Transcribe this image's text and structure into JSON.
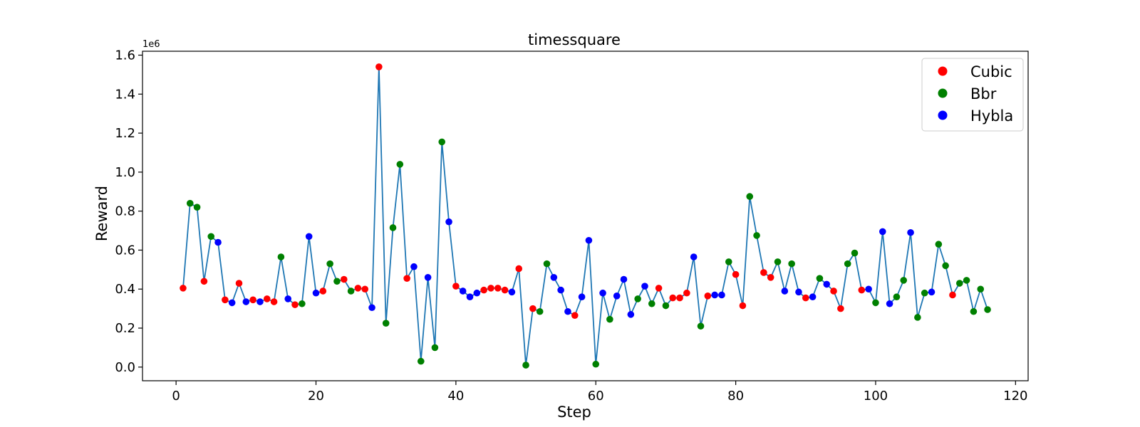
{
  "chart_data": {
    "type": "line",
    "title": "timessquare",
    "xlabel": "Step",
    "ylabel": "Reward",
    "y_offset_label": "1e6",
    "xlim": [
      -4.8,
      121.8
    ],
    "ylim": [
      -70000,
      1620000
    ],
    "x_ticks": [
      0,
      20,
      40,
      60,
      80,
      100,
      120
    ],
    "y_ticks": [
      0,
      200000,
      400000,
      600000,
      800000,
      1000000,
      1200000,
      1400000,
      1600000
    ],
    "y_tick_labels": [
      "0.0",
      "0.2",
      "0.4",
      "0.6",
      "0.8",
      "1.0",
      "1.2",
      "1.4",
      "1.6"
    ],
    "x_tick_labels": [
      "0",
      "20",
      "40",
      "60",
      "80",
      "100",
      "120"
    ],
    "line_color": "#1f77b4",
    "legend": {
      "position": "top-right",
      "entries": [
        {
          "label": "Cubic",
          "color": "#ff0000"
        },
        {
          "label": "Bbr",
          "color": "#008000"
        },
        {
          "label": "Hybla",
          "color": "#0000ff"
        }
      ]
    },
    "x": [
      1,
      2,
      3,
      4,
      5,
      6,
      7,
      8,
      9,
      10,
      11,
      12,
      13,
      14,
      15,
      16,
      17,
      18,
      19,
      20,
      21,
      22,
      23,
      24,
      25,
      26,
      27,
      28,
      29,
      30,
      31,
      32,
      33,
      34,
      35,
      36,
      37,
      38,
      39,
      40,
      41,
      42,
      43,
      44,
      45,
      46,
      47,
      48,
      49,
      50,
      51,
      52,
      53,
      54,
      55,
      56,
      57,
      58,
      59,
      60,
      61,
      62,
      63,
      64,
      65,
      66,
      67,
      68,
      69,
      70,
      71,
      72,
      73,
      74,
      75,
      76,
      77,
      78,
      79,
      80,
      81,
      82,
      83,
      84,
      85,
      86,
      87,
      88,
      89,
      90,
      91,
      92,
      93,
      94,
      95,
      96,
      97,
      98,
      99,
      100,
      101,
      102,
      103,
      104,
      105,
      106,
      107,
      108,
      109,
      110,
      111,
      112,
      113,
      114,
      115,
      116
    ],
    "y": [
      405000,
      840000,
      820000,
      440000,
      670000,
      640000,
      345000,
      330000,
      430000,
      335000,
      345000,
      335000,
      350000,
      335000,
      565000,
      350000,
      320000,
      325000,
      670000,
      380000,
      390000,
      530000,
      440000,
      450000,
      390000,
      405000,
      400000,
      305000,
      1540000,
      225000,
      715000,
      1040000,
      455000,
      515000,
      30000,
      460000,
      100000,
      1155000,
      745000,
      415000,
      390000,
      360000,
      380000,
      395000,
      405000,
      405000,
      395000,
      385000,
      505000,
      10000,
      300000,
      285000,
      530000,
      460000,
      395000,
      285000,
      265000,
      360000,
      650000,
      15000,
      380000,
      245000,
      365000,
      450000,
      270000,
      350000,
      415000,
      325000,
      405000,
      315000,
      355000,
      355000,
      380000,
      565000,
      210000,
      365000,
      370000,
      370000,
      540000,
      475000,
      315000,
      875000,
      675000,
      485000,
      460000,
      540000,
      390000,
      530000,
      385000,
      355000,
      360000,
      455000,
      425000,
      390000,
      300000,
      530000,
      585000,
      395000,
      400000,
      330000,
      695000,
      325000,
      360000,
      445000,
      690000,
      255000,
      380000,
      385000,
      630000,
      520000,
      370000,
      430000,
      445000,
      285000,
      400000,
      295000
    ],
    "series": [
      {
        "name": "Cubic",
        "color": "#ff0000",
        "steps": [
          1,
          4,
          7,
          9,
          11,
          13,
          14,
          17,
          21,
          24,
          26,
          27,
          29,
          33,
          40,
          44,
          45,
          46,
          47,
          49,
          51,
          57,
          69,
          71,
          72,
          73,
          76,
          80,
          81,
          84,
          85,
          90,
          94,
          95,
          98,
          111
        ]
      },
      {
        "name": "Bbr",
        "color": "#008000",
        "steps": [
          2,
          3,
          5,
          15,
          18,
          22,
          23,
          25,
          30,
          31,
          32,
          35,
          37,
          38,
          50,
          52,
          53,
          60,
          62,
          66,
          68,
          70,
          75,
          79,
          82,
          83,
          86,
          88,
          92,
          96,
          97,
          100,
          103,
          104,
          106,
          107,
          109,
          110,
          112,
          113,
          114,
          115,
          116
        ]
      },
      {
        "name": "Hybla",
        "color": "#0000ff",
        "steps": [
          6,
          8,
          10,
          12,
          16,
          19,
          20,
          28,
          34,
          36,
          39,
          41,
          42,
          43,
          48,
          54,
          55,
          56,
          58,
          59,
          61,
          63,
          64,
          65,
          67,
          74,
          77,
          78,
          87,
          89,
          91,
          93,
          99,
          101,
          102,
          105,
          108
        ]
      }
    ]
  }
}
